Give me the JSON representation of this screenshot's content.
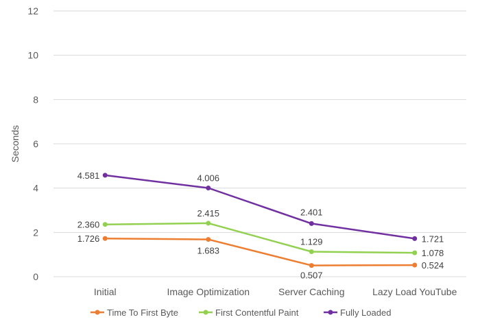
{
  "chart_data": {
    "type": "line",
    "title": "",
    "xlabel": "",
    "ylabel": "Seconds",
    "ylim": [
      0,
      12
    ],
    "yticks": [
      0,
      2,
      4,
      6,
      8,
      10,
      12
    ],
    "grid": true,
    "legend_position": "bottom",
    "categories": [
      "Initial",
      "Image Optimization",
      "Server Caching",
      "Lazy Load YouTube"
    ],
    "series": [
      {
        "name": "Time To First Byte",
        "color": "#ED7D31",
        "values": [
          1.726,
          1.683,
          0.507,
          0.524
        ],
        "labels": [
          "1.726",
          "1.683",
          "0.507",
          "0.524"
        ]
      },
      {
        "name": "First Contentful Paint",
        "color": "#92D050",
        "values": [
          2.36,
          2.415,
          1.129,
          1.078
        ],
        "labels": [
          "2.360",
          "2.415",
          "1.129",
          "1.078"
        ]
      },
      {
        "name": "Fully Loaded",
        "color": "#7030A0",
        "values": [
          4.581,
          4.006,
          2.401,
          1.721
        ],
        "labels": [
          "4.581",
          "4.006",
          "2.401",
          "1.721"
        ]
      }
    ]
  }
}
